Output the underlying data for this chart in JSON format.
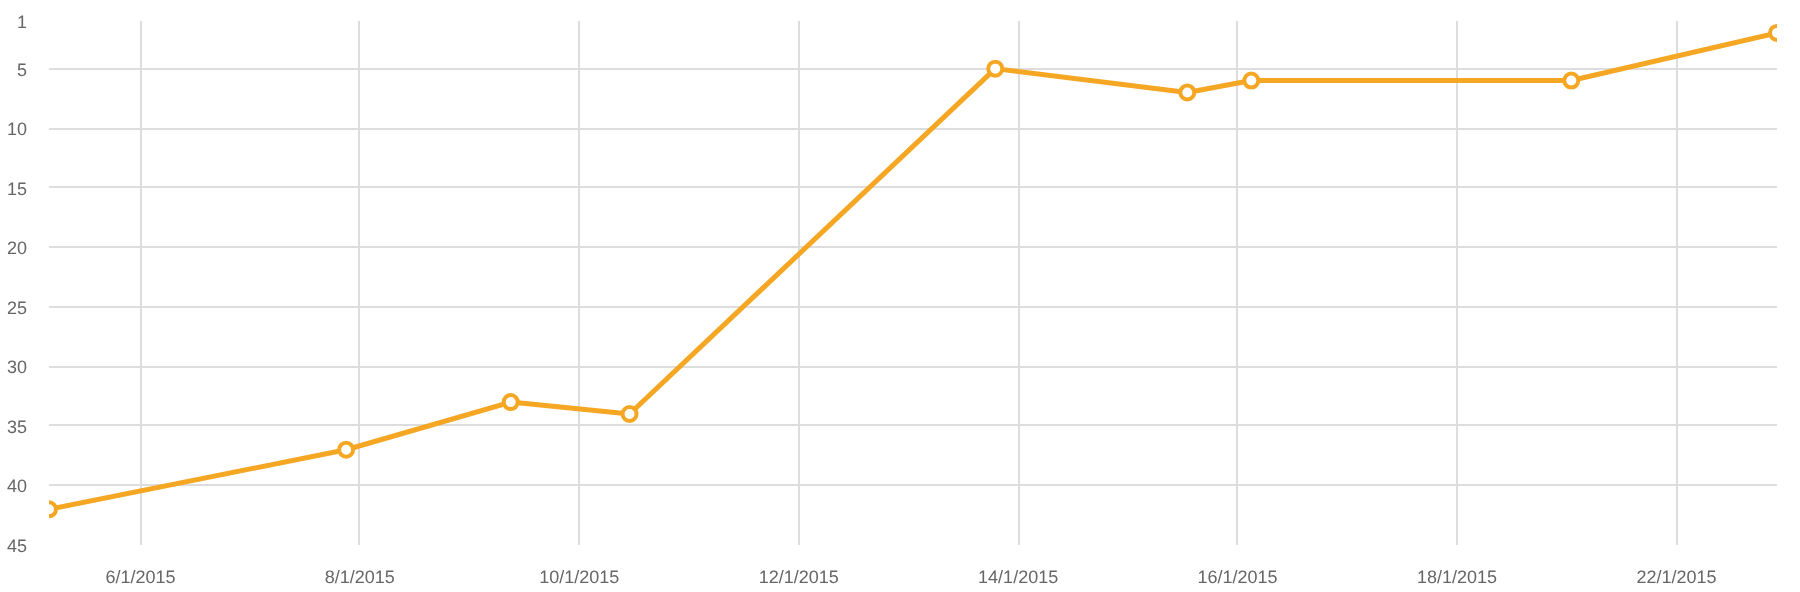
{
  "chart_data": {
    "type": "line",
    "x": [
      "2015-01-05T04:00",
      "2015-01-07T21:00",
      "2015-01-09T09:00",
      "2015-01-10T11:00",
      "2015-01-13T19:00",
      "2015-01-15T13:00",
      "2015-01-16T03:00",
      "2015-01-19T01:00",
      "2015-01-20T22:00"
    ],
    "series": [
      {
        "color": "#f5a623",
        "values": [
          42,
          37,
          33,
          34,
          5,
          7,
          6,
          6,
          2
        ]
      }
    ],
    "xlim": [
      "2015-01-05T04:00",
      "2015-01-20T22:00"
    ],
    "xticks": [
      {
        "value": "2015-01-06",
        "label": "6/1/2015"
      },
      {
        "value": "2015-01-08",
        "label": "8/1/2015"
      },
      {
        "value": "2015-01-10",
        "label": "10/1/2015"
      },
      {
        "value": "2015-01-12",
        "label": "12/1/2015"
      },
      {
        "value": "2015-01-14",
        "label": "14/1/2015"
      },
      {
        "value": "2015-01-16",
        "label": "16/1/2015"
      },
      {
        "value": "2015-01-18",
        "label": "18/1/2015"
      },
      {
        "value": "2015-01-20",
        "label": "22/1/2015"
      }
    ],
    "ylim": [
      45,
      1
    ],
    "yticks": [
      1,
      5,
      10,
      15,
      20,
      25,
      30,
      35,
      40,
      45
    ],
    "grid": true,
    "marker": "circle",
    "line_style": "solid"
  }
}
